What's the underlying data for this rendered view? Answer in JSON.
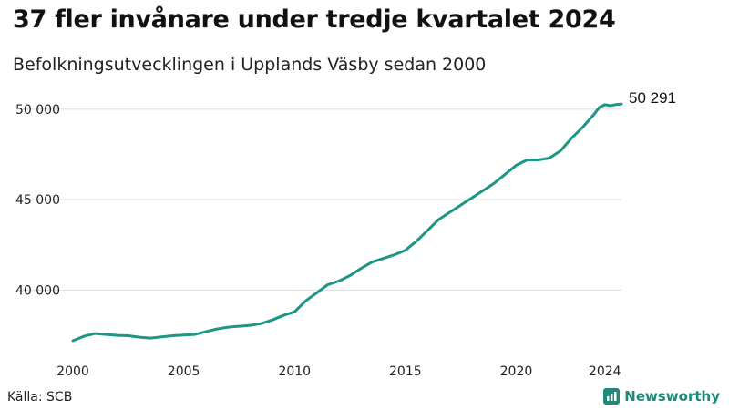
{
  "header": {
    "title": "37 fler invånare under tredje kvartalet 2024",
    "subtitle": "Befolkningsutvecklingen i Upplands Väsby sedan 2000"
  },
  "footer": {
    "source": "Källa: SCB",
    "brand": "Newsworthy"
  },
  "colors": {
    "line": "#1f9585",
    "grid": "#dddddd",
    "brand": "#1f8a7a"
  },
  "chart_data": {
    "type": "line",
    "title": "37 fler invånare under tredje kvartalet 2024",
    "subtitle": "Befolkningsutvecklingen i Upplands Väsby sedan 2000",
    "xlabel": "",
    "ylabel": "",
    "ylim": [
      37000,
      51000
    ],
    "xlim": [
      2000,
      2024.75
    ],
    "grid": "horizontal",
    "y_ticks": [
      40000,
      45000,
      50000
    ],
    "y_tick_labels": [
      "40 000",
      "45 000",
      "50 000"
    ],
    "x_ticks": [
      2000,
      2005,
      2010,
      2015,
      2020,
      2024
    ],
    "x_tick_labels": [
      "2000",
      "2005",
      "2010",
      "2015",
      "2020",
      "2024"
    ],
    "end_label": "50 291",
    "series": [
      {
        "points": [
          [
            2000,
            37200
          ],
          [
            2000.5,
            37450
          ],
          [
            2001,
            37600
          ],
          [
            2001.5,
            37550
          ],
          [
            2002,
            37500
          ],
          [
            2002.5,
            37480
          ],
          [
            2003,
            37400
          ],
          [
            2003.5,
            37350
          ],
          [
            2004,
            37420
          ],
          [
            2004.5,
            37480
          ],
          [
            2005,
            37520
          ],
          [
            2005.5,
            37550
          ],
          [
            2006,
            37700
          ],
          [
            2006.5,
            37850
          ],
          [
            2007,
            37950
          ],
          [
            2007.5,
            38000
          ],
          [
            2008,
            38050
          ],
          [
            2008.5,
            38150
          ],
          [
            2009,
            38350
          ],
          [
            2009.5,
            38600
          ],
          [
            2010,
            38800
          ],
          [
            2010.5,
            39400
          ],
          [
            2011,
            39850
          ],
          [
            2011.5,
            40300
          ],
          [
            2012,
            40500
          ],
          [
            2012.5,
            40800
          ],
          [
            2013,
            41200
          ],
          [
            2013.5,
            41550
          ],
          [
            2014,
            41750
          ],
          [
            2014.5,
            41950
          ],
          [
            2015,
            42200
          ],
          [
            2015.5,
            42700
          ],
          [
            2016,
            43300
          ],
          [
            2016.5,
            43900
          ],
          [
            2017,
            44300
          ],
          [
            2017.5,
            44700
          ],
          [
            2018,
            45100
          ],
          [
            2018.5,
            45500
          ],
          [
            2019,
            45900
          ],
          [
            2019.5,
            46400
          ],
          [
            2020,
            46900
          ],
          [
            2020.5,
            47200
          ],
          [
            2021,
            47200
          ],
          [
            2021.5,
            47300
          ],
          [
            2022,
            47700
          ],
          [
            2022.5,
            48400
          ],
          [
            2023,
            49000
          ],
          [
            2023.5,
            49700
          ],
          [
            2023.75,
            50100
          ],
          [
            2024,
            50250
          ],
          [
            2024.25,
            50200
          ],
          [
            2024.5,
            50254
          ],
          [
            2024.75,
            50291
          ]
        ]
      }
    ]
  }
}
